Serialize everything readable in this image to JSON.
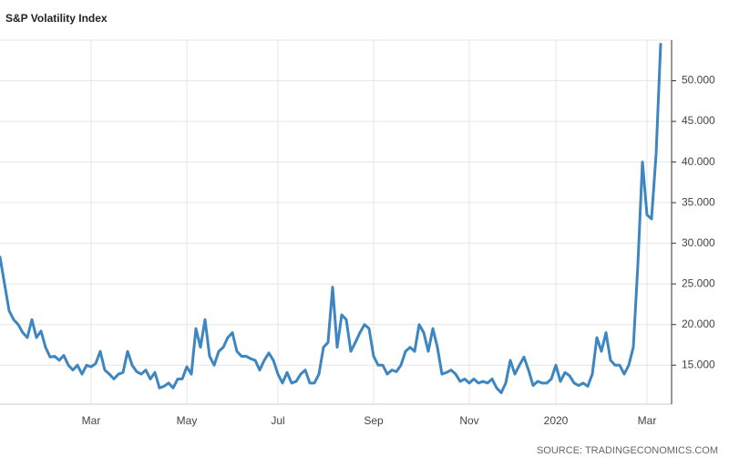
{
  "chart_data": {
    "type": "line",
    "title": "S&P Volatility Index",
    "source": "SOURCE: TRADINGECONOMICS.COM",
    "categories": [
      null,
      null,
      null,
      null,
      null,
      null,
      null,
      null,
      null,
      null,
      null,
      null,
      null,
      null,
      null,
      null,
      null,
      null,
      null,
      null,
      "Mar",
      null,
      null,
      null,
      null,
      null,
      null,
      null,
      null,
      null,
      null,
      null,
      null,
      null,
      null,
      null,
      null,
      null,
      null,
      null,
      null,
      "May",
      null,
      null,
      null,
      null,
      null,
      null,
      null,
      null,
      null,
      null,
      null,
      null,
      null,
      null,
      null,
      null,
      null,
      null,
      null,
      "Jul",
      null,
      null,
      null,
      null,
      null,
      null,
      null,
      null,
      null,
      null,
      null,
      null,
      null,
      null,
      null,
      null,
      null,
      null,
      null,
      null,
      "Sep",
      null,
      null,
      null,
      null,
      null,
      null,
      null,
      null,
      null,
      null,
      null,
      null,
      null,
      null,
      null,
      null,
      null,
      null,
      null,
      null,
      "Nov",
      null,
      null,
      null,
      null,
      null,
      null,
      null,
      null,
      null,
      null,
      null,
      null,
      null,
      null,
      null,
      null,
      null,
      null,
      "2020",
      null,
      null,
      null,
      null,
      null,
      null,
      null,
      null,
      null,
      null,
      null,
      null,
      null,
      null,
      null,
      null,
      null,
      null,
      null,
      "Mar",
      null,
      null,
      null
    ],
    "series": [
      {
        "name": "S&P Volatility Index",
        "color": "#3d86c2",
        "values": [
          28.3,
          25,
          21.7,
          20.6,
          20,
          19,
          18.4,
          20.6,
          18.4,
          19.2,
          17.2,
          16,
          16.1,
          15.6,
          16.2,
          15,
          14.4,
          15,
          13.9,
          15,
          14.8,
          15.2,
          16.7,
          14.4,
          13.9,
          13.3,
          13.9,
          14.1,
          16.7,
          15,
          14.2,
          13.9,
          14.4,
          13.3,
          14.1,
          12.2,
          12.4,
          12.8,
          12.2,
          13.3,
          13.3,
          14.8,
          13.9,
          19.5,
          17.2,
          20.6,
          16.1,
          15,
          16.7,
          17.2,
          18.4,
          19,
          16.7,
          16.1,
          16.1,
          15.8,
          15.6,
          14.4,
          15.6,
          16.5,
          15.6,
          13.9,
          12.8,
          14.1,
          12.8,
          13,
          13.9,
          14.4,
          12.8,
          12.8,
          13.9,
          17.2,
          17.8,
          24.6,
          17.2,
          21.2,
          20.6,
          16.7,
          17.8,
          19,
          20,
          19.5,
          16.1,
          15,
          15,
          13.9,
          14.4,
          14.2,
          15,
          16.7,
          17.2,
          16.7,
          20,
          19,
          16.7,
          19.5,
          17.2,
          13.9,
          14.1,
          14.4,
          13.9,
          13,
          13.3,
          12.8,
          13.3,
          12.8,
          13,
          12.8,
          13.3,
          12.2,
          11.6,
          12.8,
          15.6,
          13.9,
          15,
          16,
          14.4,
          12.5,
          13,
          12.8,
          12.8,
          13.3,
          15,
          13,
          14.1,
          13.7,
          12.8,
          12.5,
          12.8,
          12.4,
          13.9,
          18.4,
          16.7,
          19,
          15.6,
          15,
          15,
          13.9,
          15,
          17.2,
          27.4,
          40,
          33.5,
          33,
          41,
          54.5
        ]
      }
    ],
    "ylim": [
      10.2,
      55
    ],
    "yticks": [
      {
        "value": 15,
        "label": "15.000"
      },
      {
        "value": 20,
        "label": "20.000"
      },
      {
        "value": 25,
        "label": "25.000"
      },
      {
        "value": 30,
        "label": "30.000"
      },
      {
        "value": 35,
        "label": "35.000"
      },
      {
        "value": 40,
        "label": "40.000"
      },
      {
        "value": 45,
        "label": "45.000"
      },
      {
        "value": 50,
        "label": "50.000"
      }
    ],
    "grid": true
  }
}
